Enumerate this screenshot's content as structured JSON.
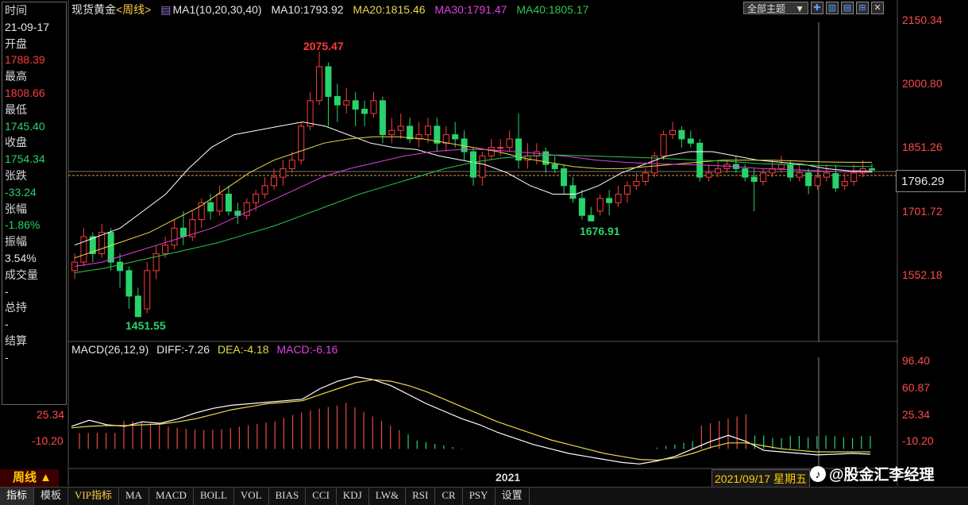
{
  "info_panel": {
    "rows": [
      {
        "label": "时间",
        "value": "21-09-17"
      },
      {
        "label": "开盘",
        "value": "1788.39"
      },
      {
        "label": "最高",
        "value": "1808.66"
      },
      {
        "label": "最低",
        "value": "1745.40"
      },
      {
        "label": "收盘",
        "value": "1754.34"
      },
      {
        "label": "张跌",
        "value": "-33.24"
      },
      {
        "label": "张幅",
        "value": "-1.86%"
      },
      {
        "label": "振幅",
        "value": "3.54%"
      },
      {
        "label": "成交量",
        "value": "-"
      },
      {
        "label": "总持",
        "value": "-"
      },
      {
        "label": "结算",
        "value": "-"
      }
    ]
  },
  "header": {
    "symbol": "现货黄金",
    "period_link": "<周线>",
    "ma_config": "MA1(10,20,30,40)",
    "ma10": "MA10:1793.92",
    "ma20": "MA20:1815.46",
    "ma30": "MA30:1791.47",
    "ma40": "MA40:1805.17"
  },
  "toolbar": {
    "theme_button": "全部主题",
    "theme_arrow": "▼"
  },
  "price_axis": {
    "ticks": [
      "2150.34",
      "2000.80",
      "1851.26",
      "1701.72",
      "1552.18"
    ],
    "current": "1796.29"
  },
  "annotations": {
    "high": "2075.47",
    "mid_low": "1676.91",
    "low": "1451.55"
  },
  "macd": {
    "title": "MACD(26,12,9)",
    "diff": "DIFF:-7.26",
    "dea": "DEA:-4.18",
    "macd": "MACD:-6.16",
    "ticks": [
      "96.40",
      "60.87",
      "25.34",
      "-10.20"
    ],
    "left_ticks": [
      "25.34",
      "-10.20"
    ]
  },
  "footer": {
    "period": "周线 ▲",
    "year": "2021",
    "date": "2021/09/17 星期五",
    "watermark": "@股金汇李经理",
    "tabs": [
      "指标",
      "模板",
      "VIP指标",
      "MA",
      "MACD",
      "BOLL",
      "VOL",
      "BIAS",
      "CCI",
      "KDJ",
      "LW&",
      "RSI",
      "CR",
      "PSY",
      "设置"
    ]
  },
  "colors": {
    "up": "#ff3b3b",
    "down": "#29d36b",
    "ma10": "#ffffff",
    "ma20": "#e8d84a",
    "ma30": "#e040e0",
    "ma40": "#29c84a"
  },
  "chart_data": {
    "type": "candlestick",
    "title": "现货黄金 周线",
    "ylim": [
      1451.55,
      2150.34
    ],
    "series": [
      {
        "name": "MA10",
        "values": [
          1620,
          1640,
          1660,
          1700,
          1740,
          1800,
          1850,
          1880,
          1890,
          1900,
          1910,
          1900,
          1880,
          1860,
          1850,
          1845,
          1830,
          1820,
          1810,
          1790,
          1760,
          1740,
          1740,
          1760,
          1790,
          1810,
          1830,
          1840,
          1840,
          1830,
          1820,
          1815,
          1810,
          1800,
          1795,
          1794
        ]
      },
      {
        "name": "MA20",
        "values": [
          1590,
          1610,
          1630,
          1650,
          1680,
          1710,
          1750,
          1790,
          1820,
          1840,
          1860,
          1870,
          1875,
          1875,
          1870,
          1860,
          1850,
          1840,
          1825,
          1815,
          1805,
          1800,
          1800,
          1805,
          1810,
          1815,
          1820,
          1820,
          1820,
          1818,
          1816,
          1815,
          1815
        ]
      },
      {
        "name": "MA30",
        "values": [
          1570,
          1580,
          1600,
          1620,
          1640,
          1660,
          1690,
          1720,
          1750,
          1780,
          1800,
          1815,
          1830,
          1840,
          1845,
          1845,
          1840,
          1835,
          1828,
          1820,
          1815,
          1812,
          1810,
          1808,
          1805,
          1800,
          1798,
          1795,
          1793,
          1791
        ]
      },
      {
        "name": "MA40",
        "values": [
          1555,
          1565,
          1580,
          1595,
          1610,
          1625,
          1645,
          1665,
          1690,
          1715,
          1740,
          1760,
          1780,
          1800,
          1815,
          1825,
          1830,
          1832,
          1830,
          1828,
          1826,
          1823,
          1820,
          1817,
          1812,
          1810,
          1808,
          1806,
          1805
        ]
      }
    ]
  }
}
